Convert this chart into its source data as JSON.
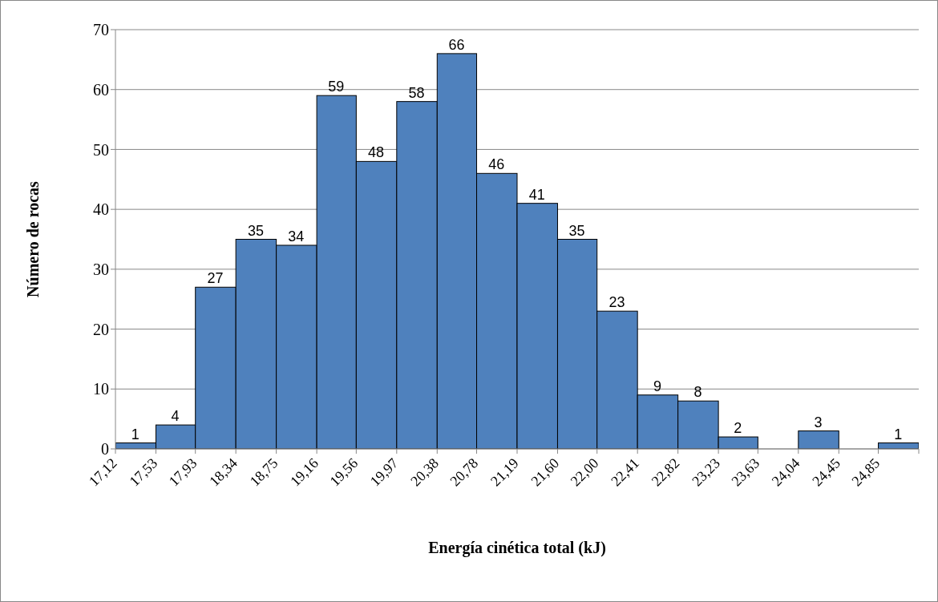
{
  "chart_data": {
    "type": "histogram",
    "xlabel": "Energía cinética total (kJ)",
    "ylabel": "Número de rocas",
    "bins": [
      17.12,
      17.53,
      17.93,
      18.34,
      18.75,
      19.16,
      19.56,
      19.97,
      20.38,
      20.78,
      21.19,
      21.6,
      22.0,
      22.41,
      22.82,
      23.23,
      23.63,
      24.04,
      24.45,
      24.85,
      25.26
    ],
    "values": [
      1,
      4,
      27,
      35,
      34,
      59,
      48,
      58,
      66,
      46,
      41,
      35,
      23,
      9,
      8,
      2,
      0,
      3,
      0,
      1
    ],
    "value_labels": [
      "1",
      "4",
      "27",
      "35",
      "34",
      "59",
      "48",
      "58",
      "66",
      "46",
      "41",
      "35",
      "23",
      "9",
      "8",
      "2",
      null,
      "3",
      null,
      "1"
    ],
    "color": "#4f81bd",
    "xlim": [
      17.12,
      25.26
    ],
    "xticks": [
      {
        "value": 17.12,
        "label": "17,12"
      },
      {
        "value": 17.53,
        "label": "17,53"
      },
      {
        "value": 17.93,
        "label": "17,93"
      },
      {
        "value": 18.34,
        "label": "18,34"
      },
      {
        "value": 18.75,
        "label": "18,75"
      },
      {
        "value": 19.16,
        "label": "19,16"
      },
      {
        "value": 19.56,
        "label": "19,56"
      },
      {
        "value": 19.97,
        "label": "19,97"
      },
      {
        "value": 20.38,
        "label": "20,38"
      },
      {
        "value": 20.78,
        "label": "20,78"
      },
      {
        "value": 21.19,
        "label": "21,19"
      },
      {
        "value": 21.6,
        "label": "21,60"
      },
      {
        "value": 22.0,
        "label": "22,00"
      },
      {
        "value": 22.41,
        "label": "22,41"
      },
      {
        "value": 22.82,
        "label": "22,82"
      },
      {
        "value": 23.23,
        "label": "23,23"
      },
      {
        "value": 23.63,
        "label": "23,63"
      },
      {
        "value": 24.04,
        "label": "24,04"
      },
      {
        "value": 24.45,
        "label": "24,45"
      },
      {
        "value": 24.85,
        "label": "24,85"
      },
      {
        "value": 25.26,
        "label": null
      }
    ],
    "ylim": [
      0,
      70
    ],
    "yticks": [
      0,
      10,
      20,
      30,
      40,
      50,
      60,
      70
    ],
    "grid": "y"
  }
}
